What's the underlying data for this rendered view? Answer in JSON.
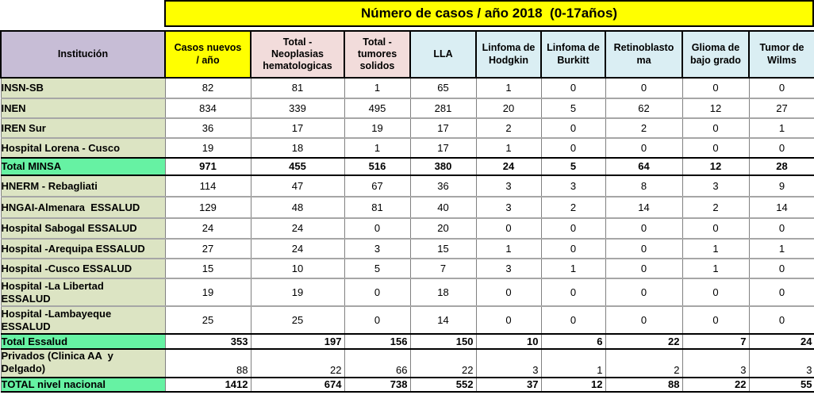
{
  "title": "Número de casos / año 2018  (0-17años)",
  "colors": {
    "title-bg": "#FFFF00",
    "header-institution-bg": "#C7BDD6",
    "header-casos-bg": "#FFFF00",
    "header-total-bg": "#F2DCDB",
    "header-diagnosis-bg": "#DAEEF3",
    "institution-bg": "#DCE4C3",
    "total-row-bg": "#66F2A3",
    "grid-border": "#808080",
    "strong-border": "#000000"
  },
  "table": {
    "columns": [
      {
        "label": "Institución",
        "style": "lavender"
      },
      {
        "label": "Casos nuevos\n/ año",
        "style": "yellow"
      },
      {
        "label": "Total -\nNeoplasias\nhematologicas",
        "style": "pink"
      },
      {
        "label": "Total -\ntumores\nsolidos",
        "style": "pink"
      },
      {
        "label": "LLA",
        "style": "blue"
      },
      {
        "label": "Linfoma de\nHodgkin",
        "style": "blue"
      },
      {
        "label": "Linfoma de\nBurkitt",
        "style": "blue"
      },
      {
        "label": "Retinoblasto\nma",
        "style": "blue"
      },
      {
        "label": "Glioma de\nbajo grado",
        "style": "blue"
      },
      {
        "label": "Tumor de\nWilms",
        "style": "blue"
      }
    ],
    "rows": [
      {
        "label": "INSN-SB",
        "kind": "data",
        "values": [
          "82",
          "81",
          "1",
          "65",
          "1",
          "0",
          "0",
          "0",
          "0"
        ]
      },
      {
        "label": "INEN",
        "kind": "data",
        "values": [
          "834",
          "339",
          "495",
          "281",
          "20",
          "5",
          "62",
          "12",
          "27"
        ]
      },
      {
        "label": "IREN Sur",
        "kind": "data",
        "values": [
          "36",
          "17",
          "19",
          "17",
          "2",
          "0",
          "2",
          "0",
          "1"
        ]
      },
      {
        "label": "Hospital Lorena - Cusco",
        "kind": "data",
        "values": [
          "19",
          "18",
          "1",
          "17",
          "1",
          "0",
          "0",
          "0",
          "0"
        ]
      },
      {
        "label": "Total MINSA",
        "kind": "total-center",
        "values": [
          "971",
          "455",
          "516",
          "380",
          "24",
          "5",
          "64",
          "12",
          "28"
        ]
      },
      {
        "label": "HNERM - Rebagliati",
        "kind": "data",
        "values": [
          "114",
          "47",
          "67",
          "36",
          "3",
          "3",
          "8",
          "3",
          "9"
        ]
      },
      {
        "label": "HNGAI-Almenara  ESSALUD",
        "kind": "data",
        "values": [
          "129",
          "48",
          "81",
          "40",
          "3",
          "2",
          "14",
          "2",
          "14"
        ]
      },
      {
        "label": "Hospital Sabogal ESSALUD",
        "kind": "data",
        "values": [
          "24",
          "24",
          "0",
          "20",
          "0",
          "0",
          "0",
          "0",
          "0"
        ]
      },
      {
        "label": "Hospital -Arequipa ESSALUD",
        "kind": "data",
        "dotted_top": true,
        "values": [
          "27",
          "24",
          "3",
          "15",
          "1",
          "0",
          "0",
          "1",
          "1"
        ]
      },
      {
        "label": "Hospital -Cusco ESSALUD",
        "kind": "data",
        "values": [
          "15",
          "10",
          "5",
          "7",
          "3",
          "1",
          "0",
          "1",
          "0"
        ]
      },
      {
        "label": "Hospital -La Libertad\nESSALUD",
        "kind": "data",
        "values": [
          "19",
          "19",
          "0",
          "18",
          "0",
          "0",
          "0",
          "0",
          "0"
        ]
      },
      {
        "label": "Hospital -Lambayeque\nESSALUD",
        "kind": "data",
        "values": [
          "25",
          "25",
          "0",
          "14",
          "0",
          "0",
          "0",
          "0",
          "0"
        ]
      },
      {
        "label": "Total Essalud",
        "kind": "total-right",
        "values": [
          "353",
          "197",
          "156",
          "150",
          "10",
          "6",
          "22",
          "7",
          "24"
        ]
      },
      {
        "label": "Privados (Clinica AA  y\nDelgado)",
        "kind": "privados",
        "values": [
          "88",
          "22",
          "66",
          "22",
          "3",
          "1",
          "2",
          "3",
          "3"
        ]
      },
      {
        "label": "TOTAL nivel nacional",
        "kind": "total-right",
        "values": [
          "1412",
          "674",
          "738",
          "552",
          "37",
          "12",
          "88",
          "22",
          "55"
        ]
      }
    ]
  }
}
